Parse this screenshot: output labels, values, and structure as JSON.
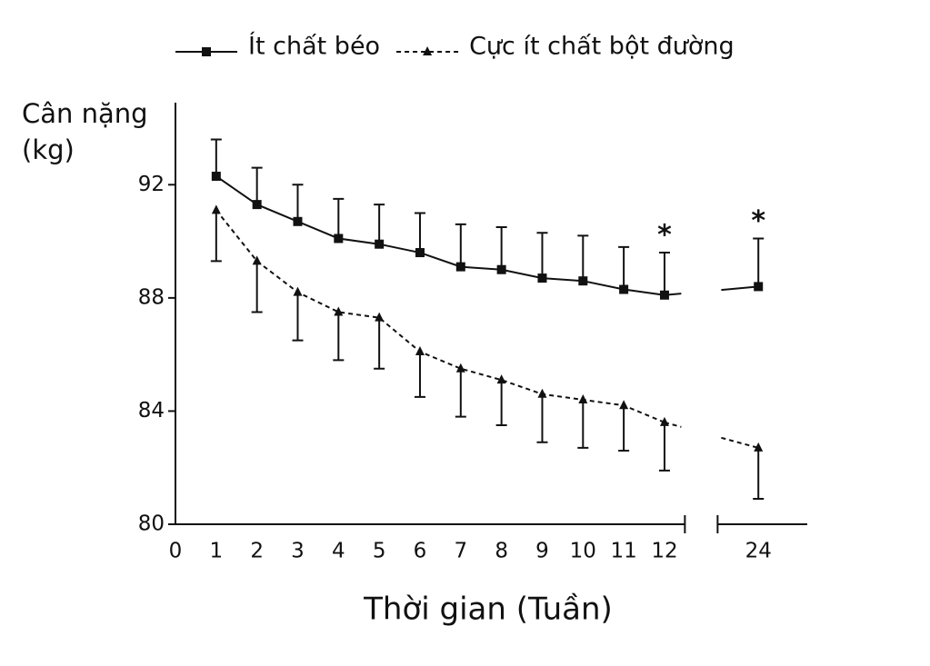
{
  "chart_data": {
    "type": "line",
    "ylabel": [
      "Cân nặng",
      "(kg)"
    ],
    "xlabel": "Thời gian (Tuần)",
    "xticks": [
      0,
      1,
      2,
      3,
      4,
      5,
      6,
      7,
      8,
      9,
      10,
      11,
      12,
      24
    ],
    "xlim": [
      0,
      25.2
    ],
    "ylim": [
      80,
      94.9
    ],
    "yticks": [
      80,
      84,
      88,
      92
    ],
    "x": [
      1,
      2,
      3,
      4,
      5,
      6,
      7,
      8,
      9,
      10,
      11,
      12,
      24
    ],
    "series": [
      {
        "name": "Ít chất béo",
        "color": "#111111",
        "marker": "square",
        "dash": false,
        "error_direction": "up",
        "values": [
          92.3,
          91.3,
          90.7,
          90.1,
          89.9,
          89.6,
          89.1,
          89.0,
          88.7,
          88.6,
          88.3,
          88.1,
          88.4
        ],
        "errors": [
          1.3,
          1.3,
          1.3,
          1.4,
          1.4,
          1.4,
          1.5,
          1.5,
          1.6,
          1.6,
          1.5,
          1.5,
          1.7
        ]
      },
      {
        "name": "Cực ít chất bột đường",
        "color": "#111111",
        "marker": "triangle",
        "dash": true,
        "error_direction": "down",
        "values": [
          91.1,
          89.3,
          88.2,
          87.5,
          87.3,
          86.1,
          85.5,
          85.1,
          84.6,
          84.4,
          84.2,
          83.6,
          82.7
        ],
        "errors": [
          1.8,
          1.8,
          1.7,
          1.7,
          1.8,
          1.6,
          1.7,
          1.6,
          1.7,
          1.7,
          1.6,
          1.7,
          1.8
        ]
      }
    ],
    "annotations": [
      {
        "x": 12,
        "text": "*"
      },
      {
        "x": 24,
        "text": "*"
      }
    ]
  }
}
